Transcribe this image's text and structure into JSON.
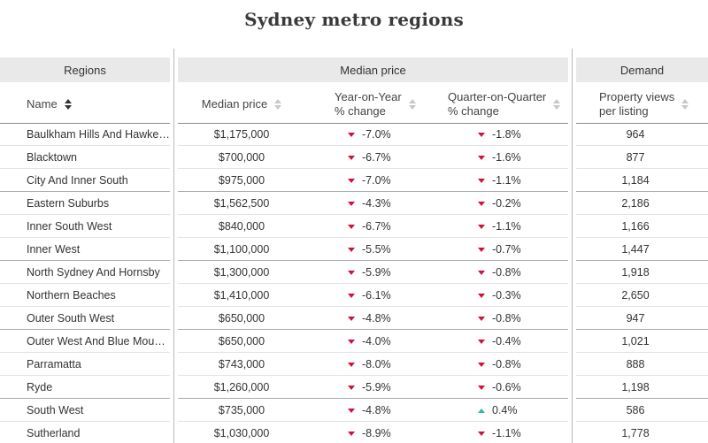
{
  "title": "Sydney metro regions",
  "groups": {
    "regions": "Regions",
    "median_price": "Median price",
    "demand": "Demand"
  },
  "columns": {
    "name": "Name",
    "median_price": "Median price",
    "yoy": [
      "Year-on-Year",
      "% change"
    ],
    "qoq": [
      "Quarter-on-Quarter",
      "% change"
    ],
    "views": [
      "Property views",
      "per listing"
    ]
  },
  "colors": {
    "decrease": "#d0113c",
    "increase": "#2fb7b2"
  },
  "rows": [
    {
      "name": "Baulkham Hills And Hawkes...",
      "price": "$1,175,000",
      "yoy": "-7.0%",
      "yoy_dir": "down",
      "qoq": "-1.8%",
      "qoq_dir": "down",
      "views": "964"
    },
    {
      "name": "Blacktown",
      "price": "$700,000",
      "yoy": "-6.7%",
      "yoy_dir": "down",
      "qoq": "-1.6%",
      "qoq_dir": "down",
      "views": "877"
    },
    {
      "name": "City And Inner South",
      "price": "$975,000",
      "yoy": "-7.0%",
      "yoy_dir": "down",
      "qoq": "-1.1%",
      "qoq_dir": "down",
      "views": "1,184"
    },
    {
      "name": "Eastern Suburbs",
      "price": "$1,562,500",
      "yoy": "-4.3%",
      "yoy_dir": "down",
      "qoq": "-0.2%",
      "qoq_dir": "down",
      "views": "2,186"
    },
    {
      "name": "Inner South West",
      "price": "$840,000",
      "yoy": "-6.7%",
      "yoy_dir": "down",
      "qoq": "-1.1%",
      "qoq_dir": "down",
      "views": "1,166"
    },
    {
      "name": "Inner West",
      "price": "$1,100,000",
      "yoy": "-5.5%",
      "yoy_dir": "down",
      "qoq": "-0.7%",
      "qoq_dir": "down",
      "views": "1,447"
    },
    {
      "name": "North Sydney And Hornsby",
      "price": "$1,300,000",
      "yoy": "-5.9%",
      "yoy_dir": "down",
      "qoq": "-0.8%",
      "qoq_dir": "down",
      "views": "1,918"
    },
    {
      "name": "Northern Beaches",
      "price": "$1,410,000",
      "yoy": "-6.1%",
      "yoy_dir": "down",
      "qoq": "-0.3%",
      "qoq_dir": "down",
      "views": "2,650"
    },
    {
      "name": "Outer South West",
      "price": "$650,000",
      "yoy": "-4.8%",
      "yoy_dir": "down",
      "qoq": "-0.8%",
      "qoq_dir": "down",
      "views": "947"
    },
    {
      "name": "Outer West And Blue Mount...",
      "price": "$650,000",
      "yoy": "-4.0%",
      "yoy_dir": "down",
      "qoq": "-0.4%",
      "qoq_dir": "down",
      "views": "1,021"
    },
    {
      "name": "Parramatta",
      "price": "$743,000",
      "yoy": "-8.0%",
      "yoy_dir": "down",
      "qoq": "-0.8%",
      "qoq_dir": "down",
      "views": "888"
    },
    {
      "name": "Ryde",
      "price": "$1,260,000",
      "yoy": "-5.9%",
      "yoy_dir": "down",
      "qoq": "-0.6%",
      "qoq_dir": "down",
      "views": "1,198"
    },
    {
      "name": "South West",
      "price": "$735,000",
      "yoy": "-4.8%",
      "yoy_dir": "down",
      "qoq": "0.4%",
      "qoq_dir": "up",
      "views": "586"
    },
    {
      "name": "Sutherland",
      "price": "$1,030,000",
      "yoy": "-8.9%",
      "yoy_dir": "down",
      "qoq": "-1.1%",
      "qoq_dir": "down",
      "views": "1,778"
    }
  ]
}
